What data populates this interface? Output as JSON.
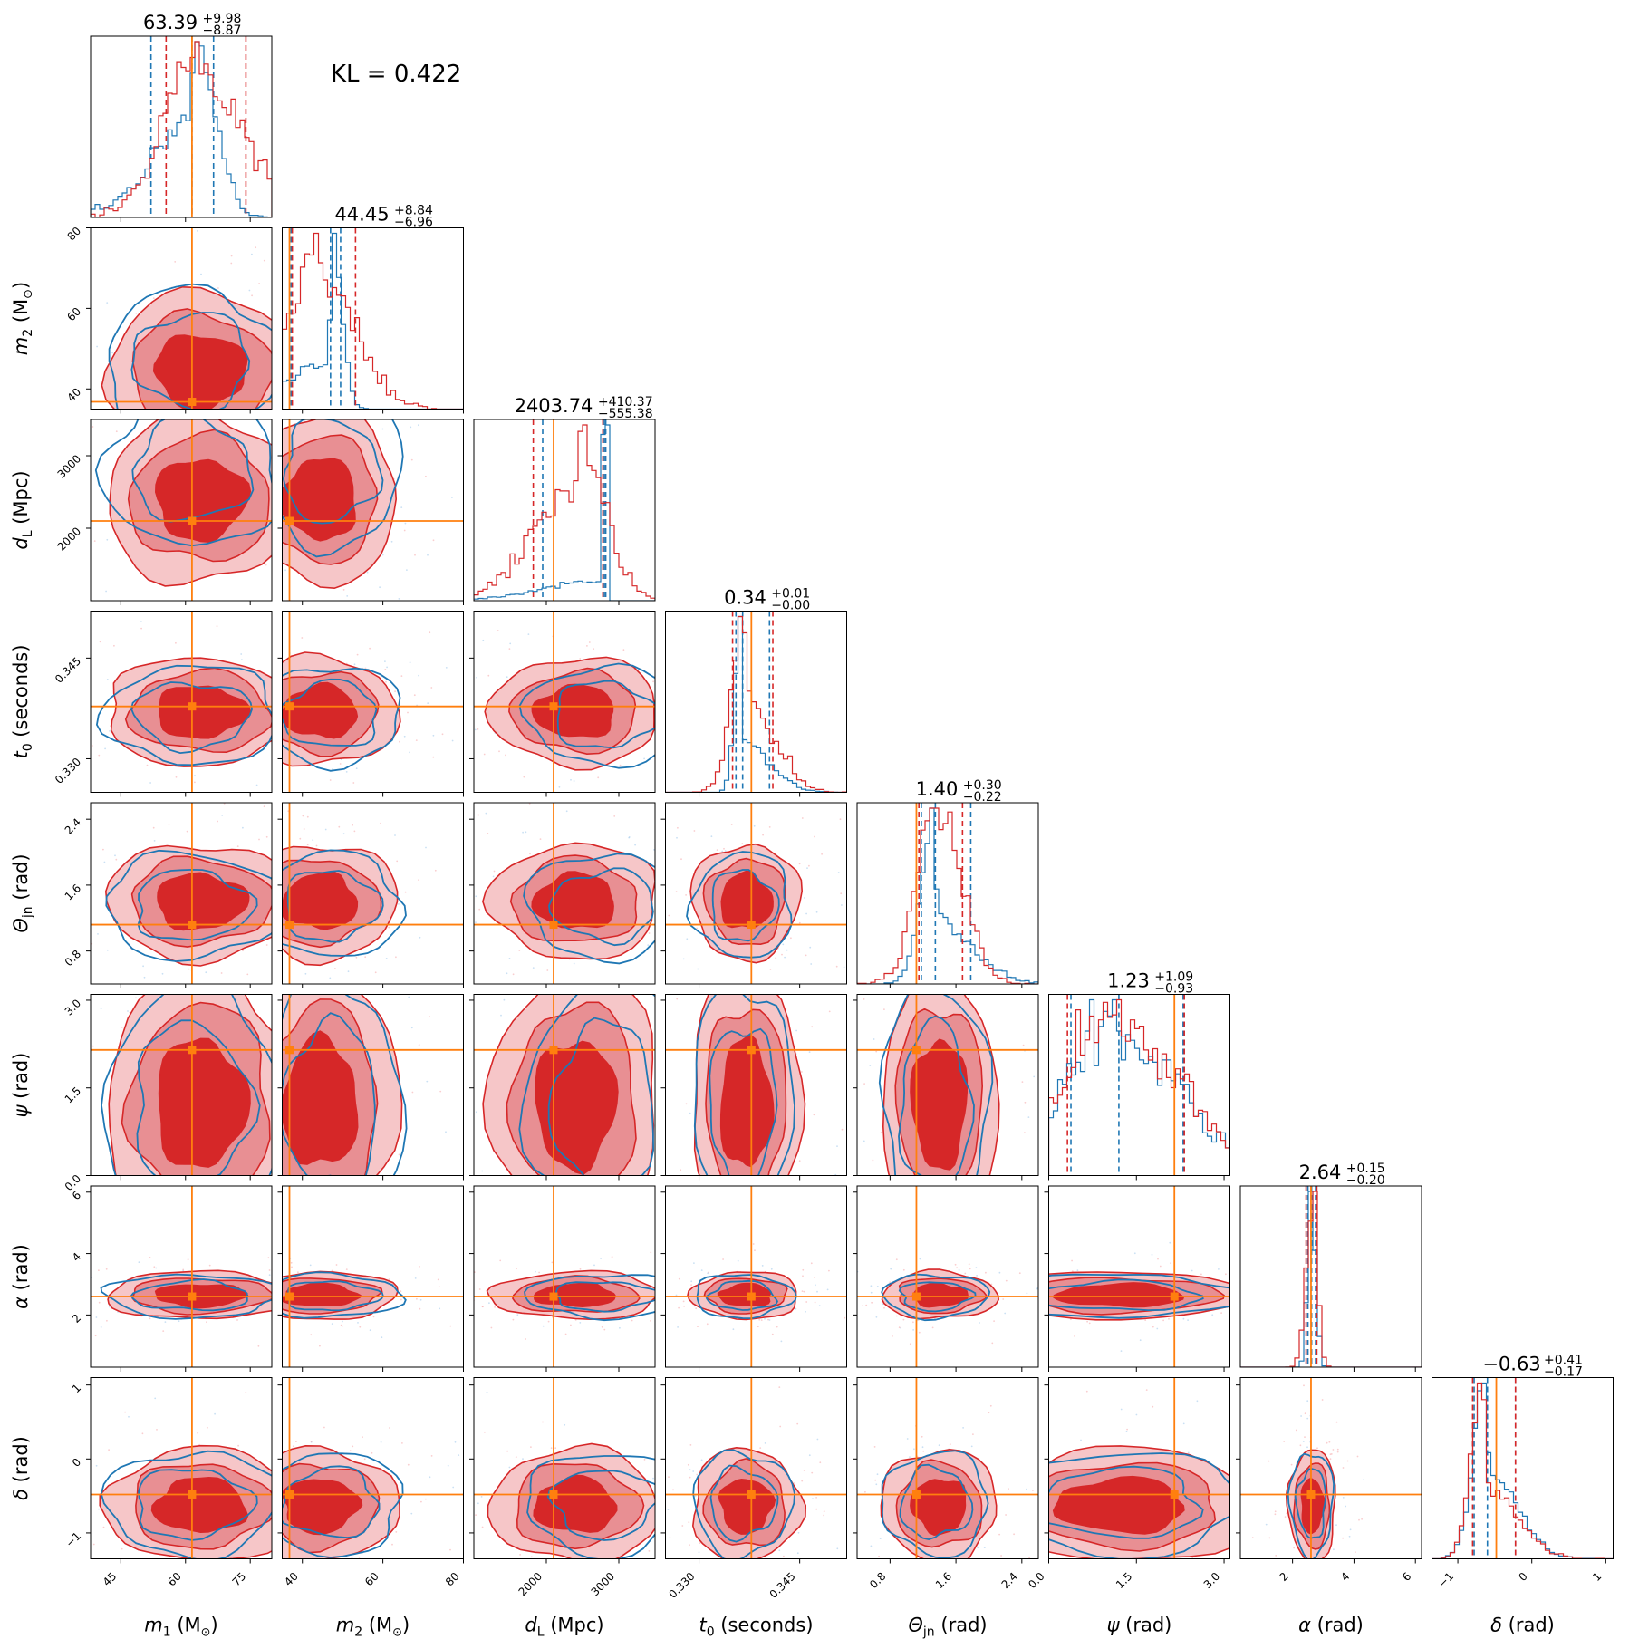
{
  "chart_data": {
    "type": "corner",
    "kl_text": "KL = 0.422",
    "colors": {
      "posterior_a": "#1f77b4",
      "posterior_b": "#d62728",
      "truth": "#ff7f0e"
    },
    "parameters": [
      {
        "label_sym": "m",
        "label_sub": "1",
        "label_unit": "(M",
        "label_unit_sub": "⊙",
        "label_unit_end": ")",
        "range": [
          38,
          80
        ],
        "ticks": [
          45,
          60,
          75
        ],
        "tick_labels": [
          "45",
          "60",
          "75"
        ],
        "truth": 61.5,
        "median": 63.39,
        "plus": "+9.98",
        "minus": "−8.87",
        "title_value": "63.39",
        "quantiles_a": [
          52,
          61.5,
          66.5
        ],
        "quantiles_b": [
          55.5,
          63.5,
          74
        ]
      },
      {
        "label_sym": "m",
        "label_sub": "2",
        "label_unit": "(M",
        "label_unit_sub": "⊙",
        "label_unit_end": ")",
        "range": [
          35,
          80
        ],
        "ticks": [
          40,
          60,
          80
        ],
        "tick_labels": [
          "40",
          "60",
          "80"
        ],
        "truth": 36.8,
        "median": 44.45,
        "plus": "+8.84",
        "minus": "−6.96",
        "title_value": "44.45",
        "quantiles_a": [
          37.2,
          47,
          49.5
        ],
        "quantiles_b": [
          37.5,
          44.4,
          53.2
        ]
      },
      {
        "label_sym": "d",
        "label_sub": "L",
        "label_unit": "(Mpc)",
        "label_unit_sub": "",
        "label_unit_end": "",
        "range": [
          1000,
          3500
        ],
        "ticks": [
          2000,
          3000
        ],
        "tick_labels": [
          "2000",
          "3000"
        ],
        "truth": 2100,
        "median": 2403.74,
        "plus": "+410.37",
        "minus": "−555.38",
        "title_value": "2403.74",
        "quantiles_a": [
          1950,
          2800,
          2820
        ],
        "quantiles_b": [
          1820,
          2400,
          2780
        ]
      },
      {
        "label_sym": "t",
        "label_sub": "0",
        "label_unit": "(seconds)",
        "label_unit_sub": "",
        "label_unit_end": "",
        "range": [
          0.325,
          0.352
        ],
        "ticks": [
          0.33,
          0.345
        ],
        "tick_labels": [
          "0.330",
          "0.345"
        ],
        "truth": 0.3378,
        "median": 0.34,
        "plus": "+0.01",
        "minus": "−0.00",
        "title_value": "0.34",
        "quantiles_a": [
          0.3355,
          0.3365,
          0.3405
        ],
        "quantiles_b": [
          0.335,
          0.337,
          0.341
        ]
      },
      {
        "label_sym": "Θ",
        "label_sub": "jn",
        "label_unit": "(rad)",
        "label_unit_sub": "",
        "label_unit_end": "",
        "range": [
          0.4,
          2.6
        ],
        "ticks": [
          0.8,
          1.6,
          2.4
        ],
        "tick_labels": [
          "0.8",
          "1.6",
          "2.4"
        ],
        "truth": 1.12,
        "median": 1.4,
        "plus": "+0.30",
        "minus": "−0.22",
        "title_value": "1.40",
        "quantiles_a": [
          1.18,
          1.35,
          1.78
        ],
        "quantiles_b": [
          1.15,
          1.4,
          1.68
        ]
      },
      {
        "label_sym": "ψ",
        "label_sub": "",
        "label_unit": "(rad)",
        "label_unit_sub": "",
        "label_unit_end": "",
        "range": [
          0,
          3.1
        ],
        "ticks": [
          0,
          1.5,
          3.0
        ],
        "tick_labels": [
          "0.0",
          "1.5",
          "3.0"
        ],
        "truth": 2.15,
        "median": 1.23,
        "plus": "+1.09",
        "minus": "−0.93",
        "title_value": "1.23",
        "quantiles_a": [
          0.38,
          1.2,
          2.3
        ],
        "quantiles_b": [
          0.32,
          1.23,
          2.32
        ]
      },
      {
        "label_sym": "α",
        "label_sub": "",
        "label_unit": "(rad)",
        "label_unit_sub": "",
        "label_unit_end": "",
        "range": [
          0.3,
          6.2
        ],
        "ticks": [
          2,
          4,
          6
        ],
        "tick_labels": [
          "2",
          "4",
          "6"
        ],
        "truth": 2.6,
        "median": 2.64,
        "plus": "+0.15",
        "minus": "−0.20",
        "title_value": "2.64",
        "quantiles_a": [
          2.5,
          2.62,
          2.75
        ],
        "quantiles_b": [
          2.44,
          2.64,
          2.79
        ]
      },
      {
        "label_sym": "δ",
        "label_sub": "",
        "label_unit": "(rad)",
        "label_unit_sub": "",
        "label_unit_end": "",
        "range": [
          -1.35,
          1.1
        ],
        "ticks": [
          -1,
          0,
          1
        ],
        "tick_labels": [
          "−1",
          "0",
          "1"
        ],
        "truth": -0.48,
        "median": -0.63,
        "plus": "+0.41",
        "minus": "−0.17",
        "title_value": "−0.63",
        "quantiles_a": [
          -0.78,
          -0.6,
          -0.22
        ],
        "quantiles_b": [
          -0.8,
          -0.63,
          -0.22
        ]
      }
    ]
  }
}
